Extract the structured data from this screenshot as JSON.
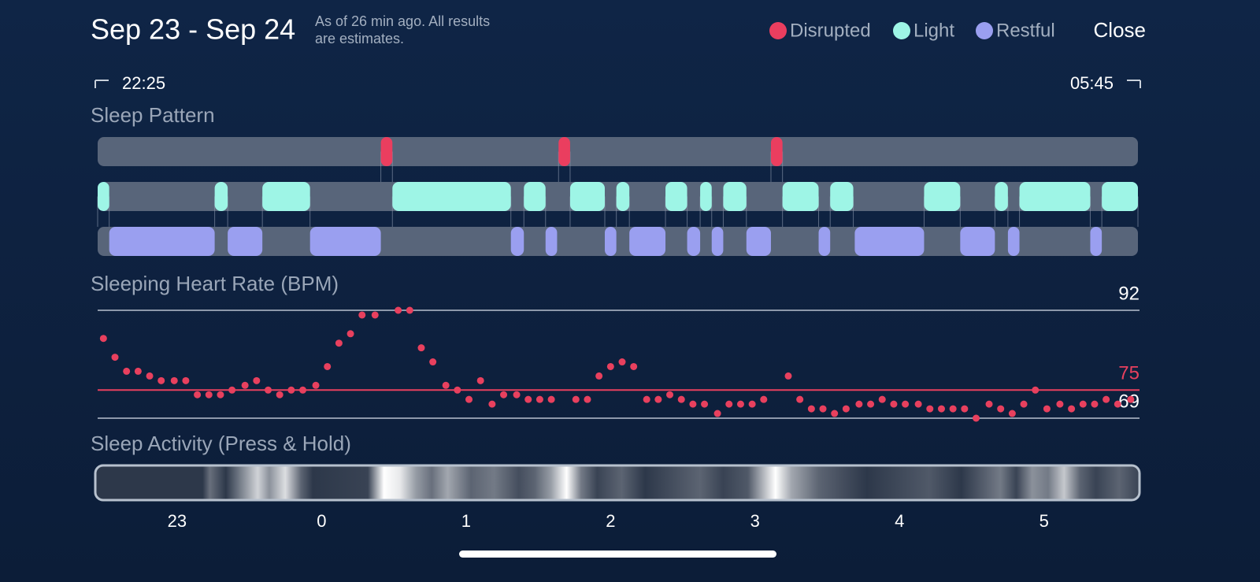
{
  "header": {
    "title": "Sep 23 - Sep 24",
    "note": [
      "As of 26 min ago. All results",
      "are estimates."
    ],
    "close": "Close"
  },
  "range": {
    "start": "22:25",
    "end": "05:45"
  },
  "chart_data": [
    {
      "type": "timeline",
      "title": "Sleep Pattern",
      "xlim": [
        -1.55,
        5.65
      ],
      "stages": [
        {
          "name": "Disrupted",
          "color": "#ea3e5f",
          "segments": [
            [
              0.41,
              0.49
            ],
            [
              1.64,
              1.72
            ],
            [
              3.11,
              3.19
            ]
          ]
        },
        {
          "name": "Light",
          "color": "#9ef5e6",
          "segments": [
            [
              -1.55,
              -1.47
            ],
            [
              -0.74,
              -0.65
            ],
            [
              -0.41,
              -0.08
            ],
            [
              0.49,
              1.31
            ],
            [
              1.4,
              1.55
            ],
            [
              1.72,
              1.96
            ],
            [
              2.04,
              2.13
            ],
            [
              2.38,
              2.53
            ],
            [
              2.62,
              2.7
            ],
            [
              2.78,
              2.94
            ],
            [
              3.19,
              3.44
            ],
            [
              3.52,
              3.68
            ],
            [
              4.17,
              4.42
            ],
            [
              4.66,
              4.75
            ],
            [
              4.83,
              5.32
            ],
            [
              5.4,
              5.65
            ]
          ]
        },
        {
          "name": "Restful",
          "color": "#9a9ff0",
          "segments": [
            [
              -1.47,
              -0.74
            ],
            [
              -0.65,
              -0.41
            ],
            [
              -0.08,
              0.41
            ],
            [
              1.31,
              1.4
            ],
            [
              1.55,
              1.63
            ],
            [
              1.96,
              2.04
            ],
            [
              2.13,
              2.38
            ],
            [
              2.53,
              2.62
            ],
            [
              2.7,
              2.78
            ],
            [
              2.94,
              3.11
            ],
            [
              3.44,
              3.52
            ],
            [
              3.69,
              4.17
            ],
            [
              4.42,
              4.66
            ],
            [
              4.75,
              4.83
            ],
            [
              5.32,
              5.4
            ]
          ]
        }
      ]
    },
    {
      "type": "scatter",
      "title": "Sleeping Heart Rate (BPM)",
      "color": "#e8405e",
      "xlim": [
        -1.55,
        5.65
      ],
      "ylim": [
        69,
        92
      ],
      "yticks": [
        69,
        92
      ],
      "average_line": {
        "value": 75,
        "color": "#e8405e"
      },
      "x": [
        -1.51,
        -1.43,
        -1.35,
        -1.27,
        -1.19,
        -1.11,
        -1.02,
        -0.94,
        -0.86,
        -0.78,
        -0.7,
        -0.62,
        -0.53,
        -0.45,
        -0.37,
        -0.29,
        -0.21,
        -0.13,
        -0.04,
        0.04,
        0.12,
        0.2,
        0.28,
        0.37,
        0.53,
        0.61,
        0.69,
        0.77,
        0.86,
        0.94,
        1.02,
        1.1,
        1.18,
        1.26,
        1.35,
        1.43,
        1.51,
        1.59,
        1.76,
        1.84,
        1.92,
        2.0,
        2.08,
        2.16,
        2.25,
        2.33,
        2.41,
        2.49,
        2.57,
        2.65,
        2.74,
        2.82,
        2.9,
        2.98,
        3.06,
        3.23,
        3.31,
        3.39,
        3.47,
        3.55,
        3.63,
        3.72,
        3.8,
        3.88,
        3.96,
        4.04,
        4.13,
        4.21,
        4.29,
        4.37,
        4.45,
        4.53,
        4.62,
        4.7,
        4.78,
        4.86,
        4.94,
        5.02,
        5.11,
        5.19,
        5.27,
        5.35,
        5.43,
        5.51,
        5.6
      ],
      "values": [
        86,
        82,
        79,
        79,
        78,
        77,
        77,
        77,
        74,
        74,
        74,
        75,
        76,
        77,
        75,
        74,
        75,
        75,
        76,
        80,
        85,
        87,
        91,
        91,
        92,
        92,
        84,
        81,
        76,
        75,
        73,
        77,
        72,
        74,
        74,
        73,
        73,
        73,
        73,
        73,
        78,
        80,
        81,
        80,
        73,
        73,
        74,
        73,
        72,
        72,
        70,
        72,
        72,
        72,
        73,
        78,
        73,
        71,
        71,
        70,
        71,
        72,
        72,
        73,
        72,
        72,
        72,
        71,
        71,
        71,
        71,
        69,
        72,
        71,
        70,
        72,
        75,
        71,
        72,
        71,
        72,
        72,
        73,
        72,
        73
      ]
    },
    {
      "type": "heatstrip",
      "title": "Sleep Activity (Press & Hold)",
      "xlim": [
        -1.55,
        5.65
      ],
      "xticks": [
        {
          "value": -1,
          "label": "23"
        },
        0,
        1,
        2,
        3,
        4,
        5
      ],
      "x": [
        -1.55,
        -0.81,
        -0.76,
        -0.65,
        -0.43,
        -0.35,
        -0.24,
        -0.13,
        -0.05,
        0.33,
        0.44,
        0.55,
        0.66,
        0.77,
        0.88,
        1.04,
        1.2,
        1.37,
        1.48,
        1.59,
        1.7,
        1.8,
        1.91,
        2.08,
        2.24,
        2.62,
        2.78,
        2.95,
        3.14,
        3.25,
        3.44,
        3.6,
        3.77,
        4.2,
        4.42,
        4.69,
        4.8,
        4.91,
        5.02,
        5.13,
        5.24,
        5.35,
        5.51,
        5.65
      ],
      "values": [
        0.1,
        0.1,
        0.35,
        0.1,
        0.8,
        0.5,
        0.85,
        0.3,
        0.1,
        0.15,
        1,
        0.9,
        0.55,
        0.35,
        0.6,
        0.3,
        0.4,
        0.2,
        0.3,
        0.55,
        1,
        0.4,
        0.15,
        0.3,
        0.1,
        0.3,
        0.15,
        0.25,
        1,
        0.6,
        0.3,
        0.2,
        0.1,
        0.25,
        0.1,
        0.4,
        0.15,
        0.5,
        0.4,
        0.75,
        0.3,
        0.15,
        0.3,
        0.15
      ]
    }
  ]
}
